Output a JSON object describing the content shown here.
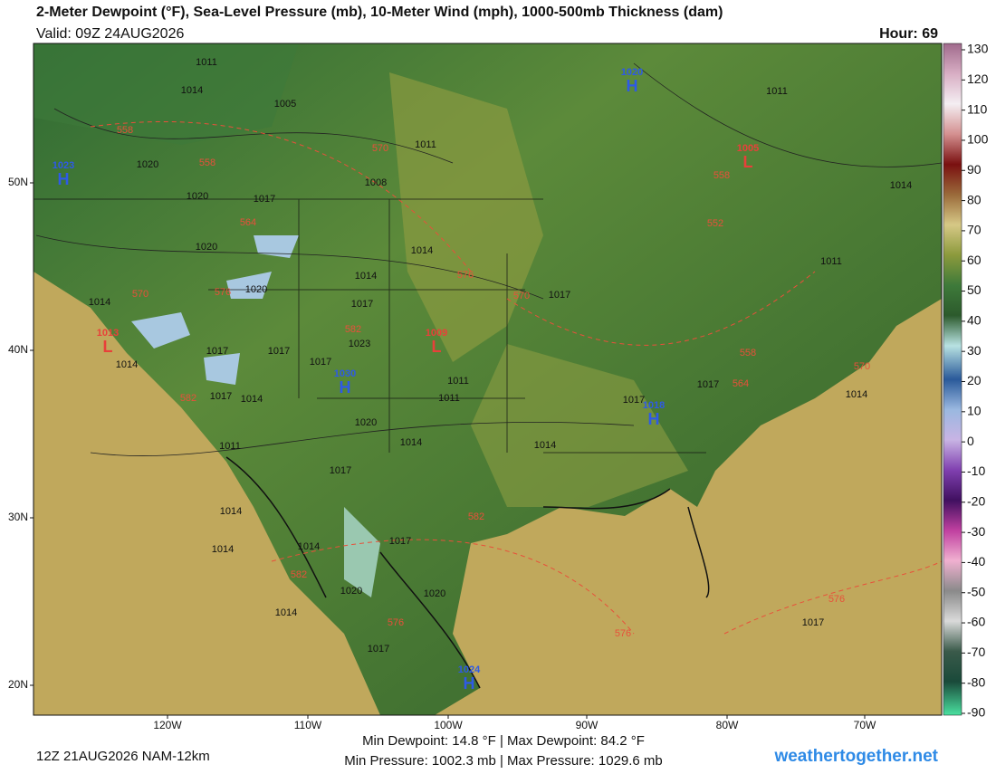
{
  "header": {
    "title": "2-Meter Dewpoint (°F), Sea-Level Pressure (mb), 10-Meter Wind (mph), 1000-500mb Thickness (dam)",
    "valid": "Valid: 09Z 24AUG2026",
    "hour": "Hour: 69"
  },
  "map": {
    "latitude_labels": [
      "50N",
      "40N",
      "30N",
      "20N"
    ],
    "longitude_labels": [
      "120W",
      "110W",
      "100W",
      "90W",
      "80W",
      "70W"
    ],
    "isobar_labels": [
      "1011",
      "1014",
      "1005",
      "1020",
      "1020",
      "1017",
      "1011",
      "1008",
      "1020",
      "1014",
      "1014",
      "1020",
      "1017",
      "1017",
      "1023",
      "1017",
      "1017",
      "1017",
      "1014",
      "1011",
      "1011",
      "1017",
      "1014",
      "1017",
      "1017",
      "1020",
      "1014",
      "1014",
      "1011",
      "1017",
      "1014",
      "1014",
      "1014",
      "1017",
      "1020",
      "1020",
      "1014",
      "1017",
      "1017",
      "1011",
      "1014",
      "1011",
      "1014",
      "1014"
    ],
    "thickness_labels": [
      "558",
      "558",
      "564",
      "570",
      "570",
      "576",
      "576",
      "570",
      "582",
      "582",
      "552",
      "558",
      "558",
      "564",
      "570",
      "582",
      "582",
      "576",
      "576",
      "576"
    ],
    "centers": [
      {
        "symbol": "H",
        "value": "1020"
      },
      {
        "symbol": "H",
        "value": "1023"
      },
      {
        "symbol": "L",
        "value": "1005"
      },
      {
        "symbol": "L",
        "value": "1013"
      },
      {
        "symbol": "L",
        "value": "1009"
      },
      {
        "symbol": "H",
        "value": "1030"
      },
      {
        "symbol": "H",
        "value": "1018"
      },
      {
        "symbol": "H",
        "value": "1024"
      }
    ]
  },
  "colorbar": {
    "ticks": [
      "130",
      "120",
      "110",
      "100",
      "90",
      "80",
      "70",
      "60",
      "50",
      "40",
      "30",
      "20",
      "10",
      "0",
      "-10",
      "-20",
      "-30",
      "-40",
      "-50",
      "-60",
      "-70",
      "-80",
      "-90"
    ]
  },
  "footer": {
    "run": "12Z 21AUG2026 NAM-12km",
    "dewpoint_stats": "Min Dewpoint:  14.8 °F | Max Dewpoint:  84.2 °F",
    "pressure_stats": "Min Pressure: 1002.3 mb | Max Pressure: 1029.6 mb",
    "site": "weathertogether.net"
  }
}
